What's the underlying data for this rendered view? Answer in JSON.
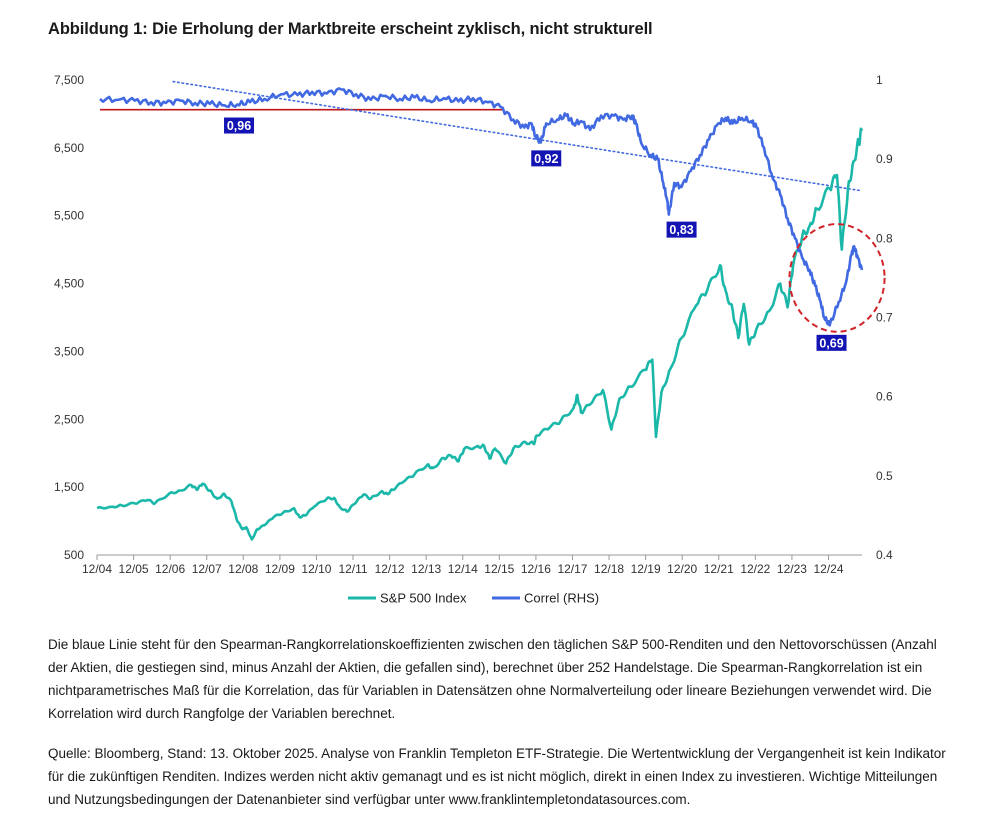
{
  "title": "Abbildung 1: Die Erholung der Marktbreite erscheint zyklisch, nicht strukturell",
  "chart_data": {
    "type": "line",
    "x_tick_labels": [
      "12/04",
      "12/05",
      "12/06",
      "12/07",
      "12/08",
      "12/09",
      "12/10",
      "12/11",
      "12/12",
      "12/13",
      "12/14",
      "12/15",
      "12/16",
      "12/17",
      "12/18",
      "12/19",
      "12/20",
      "12/21",
      "12/22",
      "12/23",
      "12/24"
    ],
    "y_left": {
      "ticks": [
        500,
        1500,
        2500,
        3500,
        4500,
        5500,
        6500,
        7500
      ],
      "tick_labels": [
        "500",
        "1,500",
        "2,500",
        "3,500",
        "4,500",
        "5,500",
        "6,500",
        "7,500"
      ],
      "lim": [
        500,
        7500
      ]
    },
    "y_right": {
      "ticks": [
        0.4,
        0.5,
        0.6,
        0.7,
        0.8,
        0.9,
        1.0
      ],
      "tick_labels": [
        "0.4",
        "0.5",
        "0.6",
        "0.7",
        "0.8",
        "0.9",
        "1"
      ],
      "lim": [
        0.4,
        1.0
      ]
    },
    "x_range": [
      2004.917,
      2025.833
    ],
    "series": [
      {
        "name": "S&P 500 Index",
        "axis": "left",
        "color": "#1bb8a9",
        "points": [
          [
            2004.92,
            1190
          ],
          [
            2005.3,
            1210
          ],
          [
            2005.6,
            1230
          ],
          [
            2005.95,
            1260
          ],
          [
            2006.3,
            1310
          ],
          [
            2006.5,
            1260
          ],
          [
            2006.9,
            1410
          ],
          [
            2007.2,
            1450
          ],
          [
            2007.5,
            1530
          ],
          [
            2007.65,
            1460
          ],
          [
            2007.8,
            1550
          ],
          [
            2008.0,
            1450
          ],
          [
            2008.2,
            1330
          ],
          [
            2008.4,
            1400
          ],
          [
            2008.6,
            1280
          ],
          [
            2008.75,
            1000
          ],
          [
            2008.9,
            880
          ],
          [
            2009.0,
            910
          ],
          [
            2009.15,
            730
          ],
          [
            2009.3,
            880
          ],
          [
            2009.5,
            940
          ],
          [
            2009.75,
            1060
          ],
          [
            2010.0,
            1120
          ],
          [
            2010.3,
            1190
          ],
          [
            2010.45,
            1060
          ],
          [
            2010.6,
            1080
          ],
          [
            2010.85,
            1210
          ],
          [
            2011.2,
            1330
          ],
          [
            2011.4,
            1340
          ],
          [
            2011.55,
            1210
          ],
          [
            2011.75,
            1140
          ],
          [
            2011.95,
            1250
          ],
          [
            2012.2,
            1390
          ],
          [
            2012.4,
            1330
          ],
          [
            2012.7,
            1440
          ],
          [
            2012.85,
            1400
          ],
          [
            2013.0,
            1460
          ],
          [
            2013.3,
            1580
          ],
          [
            2013.6,
            1690
          ],
          [
            2013.95,
            1830
          ],
          [
            2014.1,
            1780
          ],
          [
            2014.4,
            1930
          ],
          [
            2014.6,
            1960
          ],
          [
            2014.8,
            1880
          ],
          [
            2014.95,
            2060
          ],
          [
            2015.3,
            2100
          ],
          [
            2015.5,
            2110
          ],
          [
            2015.65,
            1920
          ],
          [
            2015.8,
            2070
          ],
          [
            2016.1,
            1850
          ],
          [
            2016.3,
            2070
          ],
          [
            2016.6,
            2170
          ],
          [
            2016.85,
            2140
          ],
          [
            2016.95,
            2260
          ],
          [
            2017.3,
            2380
          ],
          [
            2017.6,
            2480
          ],
          [
            2017.95,
            2670
          ],
          [
            2018.05,
            2860
          ],
          [
            2018.15,
            2600
          ],
          [
            2018.4,
            2720
          ],
          [
            2018.75,
            2930
          ],
          [
            2018.98,
            2350
          ],
          [
            2019.2,
            2800
          ],
          [
            2019.5,
            2980
          ],
          [
            2019.9,
            3230
          ],
          [
            2020.1,
            3380
          ],
          [
            2020.2,
            2240
          ],
          [
            2020.35,
            2900
          ],
          [
            2020.6,
            3250
          ],
          [
            2020.9,
            3700
          ],
          [
            2021.3,
            4180
          ],
          [
            2021.6,
            4400
          ],
          [
            2021.95,
            4770
          ],
          [
            2022.1,
            4400
          ],
          [
            2022.3,
            4100
          ],
          [
            2022.45,
            3700
          ],
          [
            2022.6,
            4200
          ],
          [
            2022.75,
            3600
          ],
          [
            2022.95,
            3840
          ],
          [
            2023.3,
            4100
          ],
          [
            2023.6,
            4500
          ],
          [
            2023.8,
            4150
          ],
          [
            2023.95,
            4770
          ],
          [
            2024.2,
            5200
          ],
          [
            2024.4,
            5350
          ],
          [
            2024.6,
            5600
          ],
          [
            2024.95,
            5900
          ],
          [
            2025.15,
            6100
          ],
          [
            2025.28,
            5000
          ],
          [
            2025.45,
            5900
          ],
          [
            2025.6,
            6300
          ],
          [
            2025.75,
            6600
          ],
          [
            2025.83,
            6750
          ]
        ]
      },
      {
        "name": "Correl (RHS)",
        "axis": "right",
        "color": "#4169e1",
        "points": [
          [
            2005.0,
            0.976
          ],
          [
            2005.5,
            0.975
          ],
          [
            2005.95,
            0.974
          ],
          [
            2006.4,
            0.972
          ],
          [
            2006.8,
            0.971
          ],
          [
            2007.2,
            0.974
          ],
          [
            2007.6,
            0.971
          ],
          [
            2008.0,
            0.97
          ],
          [
            2008.4,
            0.968
          ],
          [
            2008.75,
            0.969
          ],
          [
            2009.1,
            0.972
          ],
          [
            2009.5,
            0.976
          ],
          [
            2009.95,
            0.982
          ],
          [
            2010.4,
            0.981
          ],
          [
            2010.8,
            0.985
          ],
          [
            2011.2,
            0.983
          ],
          [
            2011.6,
            0.988
          ],
          [
            2012.0,
            0.982
          ],
          [
            2012.4,
            0.975
          ],
          [
            2012.8,
            0.98
          ],
          [
            2013.2,
            0.976
          ],
          [
            2013.6,
            0.978
          ],
          [
            2014.0,
            0.974
          ],
          [
            2014.4,
            0.977
          ],
          [
            2014.8,
            0.973
          ],
          [
            2015.2,
            0.977
          ],
          [
            2015.6,
            0.972
          ],
          [
            2015.95,
            0.966
          ],
          [
            2016.3,
            0.95
          ],
          [
            2016.6,
            0.94
          ],
          [
            2016.8,
            0.945
          ],
          [
            2016.9,
            0.93
          ],
          [
            2017.05,
            0.921
          ],
          [
            2017.2,
            0.945
          ],
          [
            2017.5,
            0.95
          ],
          [
            2017.75,
            0.955
          ],
          [
            2017.95,
            0.945
          ],
          [
            2018.15,
            0.948
          ],
          [
            2018.4,
            0.937
          ],
          [
            2018.7,
            0.955
          ],
          [
            2019.05,
            0.955
          ],
          [
            2019.3,
            0.95
          ],
          [
            2019.55,
            0.955
          ],
          [
            2019.65,
            0.945
          ],
          [
            2019.8,
            0.92
          ],
          [
            2020.05,
            0.905
          ],
          [
            2020.25,
            0.9
          ],
          [
            2020.4,
            0.87
          ],
          [
            2020.5,
            0.85
          ],
          [
            2020.55,
            0.83
          ],
          [
            2020.7,
            0.87
          ],
          [
            2020.9,
            0.865
          ],
          [
            2021.15,
            0.885
          ],
          [
            2021.4,
            0.905
          ],
          [
            2021.65,
            0.925
          ],
          [
            2021.9,
            0.945
          ],
          [
            2022.1,
            0.952
          ],
          [
            2022.3,
            0.945
          ],
          [
            2022.55,
            0.952
          ],
          [
            2022.8,
            0.948
          ],
          [
            2022.95,
            0.94
          ],
          [
            2023.15,
            0.915
          ],
          [
            2023.4,
            0.875
          ],
          [
            2023.6,
            0.855
          ],
          [
            2023.8,
            0.825
          ],
          [
            2024.0,
            0.8
          ],
          [
            2024.2,
            0.775
          ],
          [
            2024.4,
            0.76
          ],
          [
            2024.55,
            0.74
          ],
          [
            2024.7,
            0.72
          ],
          [
            2024.8,
            0.7
          ],
          [
            2024.95,
            0.69
          ],
          [
            2025.2,
            0.72
          ],
          [
            2025.4,
            0.745
          ],
          [
            2025.55,
            0.78
          ],
          [
            2025.62,
            0.79
          ],
          [
            2025.72,
            0.775
          ],
          [
            2025.83,
            0.76
          ]
        ]
      }
    ],
    "overlays": [
      {
        "type": "hline",
        "color": "#c0141c",
        "axis": "right",
        "y": 0.9625,
        "x": [
          2005.0,
          2016.0
        ]
      },
      {
        "type": "trend",
        "style": "dotted",
        "color": "#4169e1",
        "axis": "right",
        "from": [
          2007.0,
          0.998
        ],
        "to": [
          2025.83,
          0.86
        ]
      }
    ],
    "annotations": [
      {
        "text": "0,96",
        "x": 2008.8,
        "axis": "right",
        "y": 0.9425
      },
      {
        "text": "0,92",
        "x": 2017.2,
        "axis": "right",
        "y": 0.901
      },
      {
        "text": "0,83",
        "x": 2020.9,
        "axis": "right",
        "y": 0.811
      },
      {
        "text": "0,69",
        "x": 2025.0,
        "axis": "right",
        "y": 0.668
      }
    ],
    "highlight_ellipse": {
      "x": 2025.15,
      "axis": "right",
      "y": 0.75,
      "rx_years": 1.3,
      "ry_value": 0.068,
      "color": "#d2232a"
    },
    "legend": [
      {
        "label": "S&P 500 Index",
        "color": "#1bb8a9"
      },
      {
        "label": "Correl (RHS)",
        "color": "#4169e1"
      }
    ],
    "legend_position": "bottom-center",
    "grid": false
  },
  "notes": {
    "description": "Die blaue Linie steht für den Spearman-Rangkorrelationskoeffizienten zwischen den täglichen S&P 500-Renditen und den Nettovorschüssen (Anzahl der Aktien, die gestiegen sind, minus Anzahl der Aktien, die gefallen sind), berechnet über 252 Handelstage. Die Spearman-Rangkorrelation ist ein nichtparametrisches Maß für die Korrelation, das für Variablen in Datensätzen ohne Normalverteilung oder lineare Beziehungen verwendet wird. Die Korrelation wird durch Rangfolge der Variablen berechnet.",
    "source": "Quelle: Bloomberg, Stand: 13. Oktober 2025. Analyse von Franklin Templeton ETF-Strategie. Die Wertentwicklung der Vergangenheit ist kein Indikator für die zukünftigen Renditen. Indizes werden nicht aktiv gemanagt und es ist nicht möglich, direkt in einen Index zu investieren. Wichtige Mitteilungen und Nutzungsbedingungen der Datenanbieter sind verfügbar unter www.franklintempletondatasources.com."
  }
}
